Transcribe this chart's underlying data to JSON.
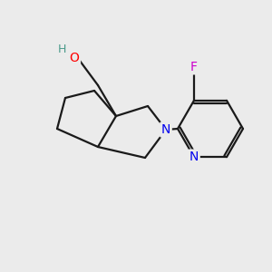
{
  "background_color": "#ebebeb",
  "bond_color": "#1a1a1a",
  "atom_colors": {
    "O": "#ff0000",
    "H_O": "#4a9a8a",
    "N": "#0000ee",
    "F": "#cc00cc"
  },
  "figsize": [
    3.0,
    3.0
  ],
  "dpi": 100
}
